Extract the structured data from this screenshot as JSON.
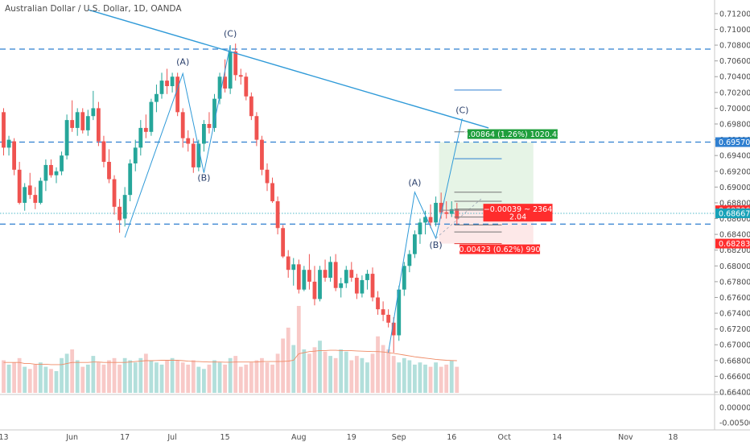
{
  "header": {
    "title": "Australian Dollar / U.S. Dollar, 1D, OANDA"
  },
  "chart_data": {
    "type": "candlestick",
    "title": "Australian Dollar / U.S. Dollar, 1D, OANDA",
    "grid": false,
    "colors": {
      "up": "#26a69a",
      "down": "#ef5350",
      "vol_up": "#b2dfdb",
      "vol_down": "#f8c9c7",
      "ma": "#ef8a65",
      "line": "#2f9ad8",
      "dashed": "#2f7fd0",
      "last": "#17a2b8",
      "long_fill": "#e6f4e6",
      "stop_fill": "#fde8e8",
      "label_green": "#1e9e3c",
      "label_red": "#ff2d2d"
    },
    "y_range": [
      0.664,
      0.7125
    ],
    "y_ticks": [
      "0.71200",
      "0.71000",
      "0.70800",
      "0.70600",
      "0.70400",
      "0.70200",
      "0.70000",
      "0.69800",
      "0.69600",
      "0.69400",
      "0.69200",
      "0.69000",
      "0.68800",
      "0.68600",
      "0.68400",
      "0.68200",
      "0.68000",
      "0.67800",
      "0.67600",
      "0.67400",
      "0.67200",
      "0.67000",
      "0.66800",
      "0.66600",
      "0.66400"
    ],
    "indicator_ticks": [
      "0.00000",
      "-0.00500"
    ],
    "x_ticks": [
      {
        "label": "13",
        "i": 0
      },
      {
        "label": "Jun",
        "i": 13
      },
      {
        "label": "17",
        "i": 23
      },
      {
        "label": "Jul",
        "i": 32
      },
      {
        "label": "15",
        "i": 42
      },
      {
        "label": "Aug",
        "i": 56
      },
      {
        "label": "19",
        "i": 66
      },
      {
        "label": "Sep",
        "i": 75
      },
      {
        "label": "16",
        "i": 85
      },
      {
        "label": "Oct",
        "i": 95
      },
      {
        "label": "14",
        "i": 105
      },
      {
        "label": "Nov",
        "i": 118
      },
      {
        "label": "18",
        "i": 127
      }
    ],
    "candles": [
      [
        0.6995,
        0.7,
        0.694,
        0.695,
        15
      ],
      [
        0.695,
        0.6965,
        0.694,
        0.696,
        13
      ],
      [
        0.6958,
        0.6962,
        0.6915,
        0.6922,
        14
      ],
      [
        0.6922,
        0.6932,
        0.6878,
        0.688,
        16
      ],
      [
        0.688,
        0.6905,
        0.687,
        0.69,
        12
      ],
      [
        0.6902,
        0.6918,
        0.6885,
        0.689,
        11
      ],
      [
        0.689,
        0.69,
        0.6872,
        0.688,
        13
      ],
      [
        0.688,
        0.6912,
        0.6878,
        0.6908,
        14
      ],
      [
        0.6908,
        0.6935,
        0.6895,
        0.6928,
        12
      ],
      [
        0.6928,
        0.6935,
        0.6912,
        0.6915,
        11
      ],
      [
        0.6915,
        0.6925,
        0.6905,
        0.692,
        10
      ],
      [
        0.692,
        0.6945,
        0.6915,
        0.694,
        16
      ],
      [
        0.694,
        0.6992,
        0.6935,
        0.6985,
        18
      ],
      [
        0.6985,
        0.701,
        0.697,
        0.6975,
        20
      ],
      [
        0.6975,
        0.7,
        0.6965,
        0.6995,
        15
      ],
      [
        0.6995,
        0.7,
        0.6968,
        0.6972,
        12
      ],
      [
        0.6972,
        0.6998,
        0.6965,
        0.699,
        13
      ],
      [
        0.699,
        0.7022,
        0.6985,
        0.7,
        17
      ],
      [
        0.7,
        0.7008,
        0.6952,
        0.6958,
        14
      ],
      [
        0.6958,
        0.6965,
        0.6925,
        0.6932,
        13
      ],
      [
        0.6932,
        0.6948,
        0.6905,
        0.691,
        15
      ],
      [
        0.691,
        0.6915,
        0.6865,
        0.6875,
        16
      ],
      [
        0.6875,
        0.6885,
        0.6842,
        0.6858,
        13
      ],
      [
        0.686,
        0.69,
        0.685,
        0.689,
        16
      ],
      [
        0.689,
        0.6935,
        0.6882,
        0.693,
        15
      ],
      [
        0.693,
        0.696,
        0.692,
        0.695,
        14
      ],
      [
        0.695,
        0.6985,
        0.694,
        0.6975,
        16
      ],
      [
        0.6975,
        0.6992,
        0.6962,
        0.697,
        18
      ],
      [
        0.697,
        0.7012,
        0.6965,
        0.7008,
        15
      ],
      [
        0.7008,
        0.703,
        0.6995,
        0.7018,
        14
      ],
      [
        0.7018,
        0.7045,
        0.7012,
        0.7035,
        13
      ],
      [
        0.7035,
        0.705,
        0.7018,
        0.7028,
        15
      ],
      [
        0.7028,
        0.7045,
        0.702,
        0.704,
        16
      ],
      [
        0.704,
        0.7045,
        0.699,
        0.6995,
        15
      ],
      [
        0.6995,
        0.7,
        0.695,
        0.6962,
        14
      ],
      [
        0.6962,
        0.6972,
        0.6945,
        0.6955,
        13
      ],
      [
        0.6955,
        0.6962,
        0.6918,
        0.6925,
        15
      ],
      [
        0.6925,
        0.696,
        0.692,
        0.6955,
        12
      ],
      [
        0.6955,
        0.6985,
        0.6945,
        0.698,
        11
      ],
      [
        0.698,
        0.6995,
        0.6968,
        0.6975,
        13
      ],
      [
        0.6975,
        0.7018,
        0.697,
        0.7012,
        15
      ],
      [
        0.7012,
        0.7045,
        0.7005,
        0.704,
        14
      ],
      [
        0.704,
        0.7062,
        0.702,
        0.7025,
        13
      ],
      [
        0.7025,
        0.708,
        0.7018,
        0.7072,
        16
      ],
      [
        0.7072,
        0.7082,
        0.7035,
        0.7042,
        17
      ],
      [
        0.7042,
        0.705,
        0.703,
        0.704,
        12
      ],
      [
        0.704,
        0.7045,
        0.701,
        0.7015,
        13
      ],
      [
        0.7015,
        0.702,
        0.6985,
        0.699,
        14
      ],
      [
        0.699,
        0.6995,
        0.6952,
        0.696,
        15
      ],
      [
        0.696,
        0.6965,
        0.6915,
        0.6922,
        16
      ],
      [
        0.6922,
        0.693,
        0.6895,
        0.6905,
        14
      ],
      [
        0.6905,
        0.6912,
        0.688,
        0.6882,
        13
      ],
      [
        0.6882,
        0.6888,
        0.684,
        0.6848,
        18
      ],
      [
        0.6848,
        0.6852,
        0.681,
        0.6812,
        25
      ],
      [
        0.6812,
        0.682,
        0.6785,
        0.6795,
        30
      ],
      [
        0.6795,
        0.681,
        0.6775,
        0.6802,
        22
      ],
      [
        0.6802,
        0.6808,
        0.6765,
        0.677,
        40
      ],
      [
        0.677,
        0.68,
        0.6768,
        0.6795,
        20
      ],
      [
        0.6795,
        0.6815,
        0.677,
        0.678,
        18
      ],
      [
        0.678,
        0.68,
        0.675,
        0.6758,
        21
      ],
      [
        0.6758,
        0.68,
        0.6755,
        0.6795,
        24
      ],
      [
        0.6795,
        0.6808,
        0.678,
        0.6785,
        19
      ],
      [
        0.6785,
        0.6812,
        0.678,
        0.6805,
        17
      ],
      [
        0.6805,
        0.6815,
        0.6768,
        0.6772,
        16
      ],
      [
        0.6772,
        0.6785,
        0.676,
        0.6778,
        20
      ],
      [
        0.6778,
        0.68,
        0.6772,
        0.6795,
        19
      ],
      [
        0.6795,
        0.6805,
        0.678,
        0.6785,
        15
      ],
      [
        0.6785,
        0.679,
        0.6758,
        0.6765,
        17
      ],
      [
        0.6765,
        0.6788,
        0.676,
        0.6782,
        16
      ],
      [
        0.6782,
        0.6795,
        0.677,
        0.679,
        14
      ],
      [
        0.679,
        0.6798,
        0.6755,
        0.676,
        18
      ],
      [
        0.676,
        0.6768,
        0.6738,
        0.6745,
        26
      ],
      [
        0.6745,
        0.6755,
        0.673,
        0.6738,
        22
      ],
      [
        0.6738,
        0.6745,
        0.6722,
        0.6728,
        20
      ],
      [
        0.6728,
        0.6735,
        0.669,
        0.6712,
        17
      ],
      [
        0.6712,
        0.6775,
        0.6705,
        0.677,
        14
      ],
      [
        0.677,
        0.6805,
        0.6762,
        0.68,
        16
      ],
      [
        0.68,
        0.682,
        0.6792,
        0.6815,
        15
      ],
      [
        0.6815,
        0.6845,
        0.681,
        0.684,
        13
      ],
      [
        0.684,
        0.686,
        0.6828,
        0.6855,
        14
      ],
      [
        0.6855,
        0.687,
        0.684,
        0.6862,
        13
      ],
      [
        0.6862,
        0.6878,
        0.6848,
        0.6855,
        12
      ],
      [
        0.6855,
        0.6888,
        0.685,
        0.688,
        14
      ],
      [
        0.688,
        0.6893,
        0.686,
        0.6868,
        12
      ],
      [
        0.6868,
        0.6882,
        0.686,
        0.6866,
        13
      ],
      [
        0.6866,
        0.6882,
        0.6862,
        0.6872,
        15
      ],
      [
        0.6872,
        0.688,
        0.6852,
        0.686,
        12
      ]
    ],
    "ma_volume": [
      14,
      14,
      14,
      14,
      13.5,
      13.5,
      13.2,
      13.2,
      13.2,
      13,
      13,
      13,
      13.5,
      14,
      14,
      14,
      14,
      14.2,
      14.2,
      14,
      14,
      14,
      14,
      14,
      14.2,
      14.4,
      14.6,
      14.8,
      14.8,
      14.9,
      15,
      15,
      15,
      15,
      14.8,
      14.6,
      14.5,
      14.4,
      14.3,
      14.2,
      14.2,
      14.2,
      14.1,
      14.1,
      14.2,
      14.2,
      14.2,
      14.2,
      14.2,
      14.4,
      14.4,
      14.4,
      14.4,
      14.5,
      14.6,
      15,
      18,
      18.5,
      19,
      19.2,
      19.5,
      19.5,
      19.6,
      19.6,
      19.5,
      19.5,
      19.4,
      19.3,
      19.2,
      19.1,
      19,
      19,
      18.8,
      18.5,
      18.2,
      17.8,
      17.4,
      17,
      16.6,
      16.3,
      16,
      15.7,
      15.4,
      15.2,
      15,
      14.9,
      14.8
    ],
    "levels": {
      "dashed_top": 0.7075,
      "dashed_mid": 0.6957,
      "dashed_low": 0.6853,
      "last_price": 0.68667,
      "price_ref": 0.68706
    },
    "trendline": {
      "i1": 16,
      "p1": 0.7125,
      "i2": 92,
      "p2": 0.6975
    },
    "abc_first": [
      {
        "i": 23,
        "p": 0.6836
      },
      {
        "i": 34,
        "p": 0.7044
      },
      {
        "i": 38,
        "p": 0.6918
      },
      {
        "i": 43,
        "p": 0.708
      }
    ],
    "abc_second": [
      {
        "i": 73,
        "p": 0.669
      },
      {
        "i": 78,
        "p": 0.68935
      },
      {
        "i": 82,
        "p": 0.6835
      },
      {
        "i": 87,
        "p": 0.6987
      }
    ],
    "wave_labels": [
      {
        "text": "(A)",
        "i": 34,
        "p": 0.7055
      },
      {
        "text": "(B)",
        "i": 38,
        "p": 0.6908
      },
      {
        "text": "(C)",
        "i": 43,
        "p": 0.7091
      },
      {
        "text": "(A)",
        "i": 78,
        "p": 0.6902
      },
      {
        "text": "(B)",
        "i": 82,
        "p": 0.6823
      },
      {
        "text": "(C)",
        "i": 87,
        "p": 0.6994
      }
    ],
    "fib_levels": [
      0.7023,
      0.697,
      0.6936,
      0.68935,
      0.6882,
      0.6872,
      0.6862,
      0.6852,
      0.6843,
      0.68283
    ],
    "position": {
      "i_start": 82.6,
      "i_end": 100.5,
      "entry": 0.68706,
      "target": 0.6957,
      "stop": 0.68283,
      "target_label": "0.00864 (1.26%) 1020.42",
      "stop_label": "0.00423 (0.62%) 990",
      "mid_line1": "−0.00039 ~ 2364",
      "mid_line2": "2.04"
    },
    "price_tags": [
      {
        "label": "0.69570",
        "p": 0.6957,
        "color": "#2f7fd0"
      },
      {
        "label": "0.68706",
        "p": 0.68706,
        "color": "#ff2d2d"
      },
      {
        "label": "0.68667",
        "p": 0.68667,
        "color": "#17a2b8"
      },
      {
        "label": "0.68283",
        "p": 0.68283,
        "color": "#ff2d2d"
      }
    ]
  }
}
